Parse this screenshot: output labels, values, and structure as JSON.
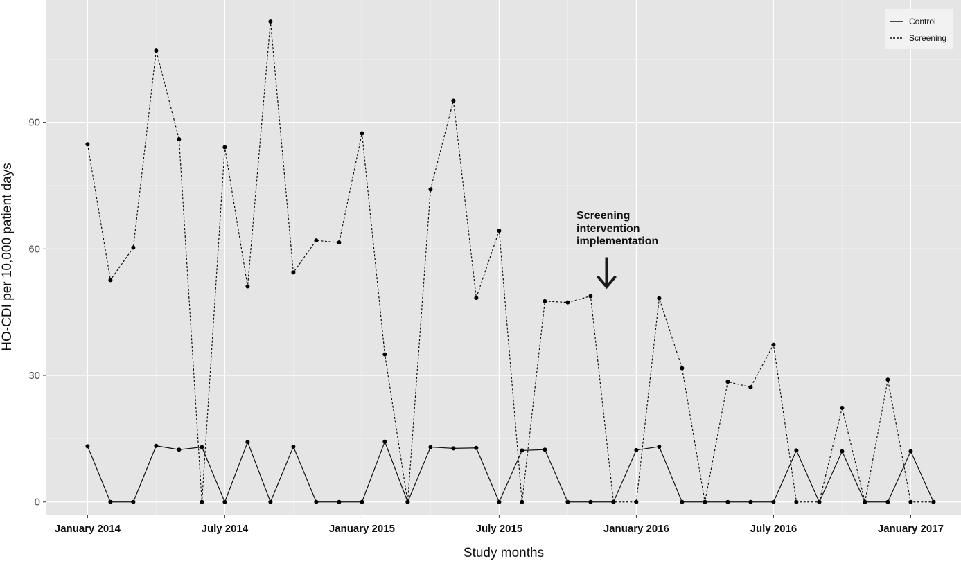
{
  "chart_data": {
    "type": "line",
    "xlabel": "Study months",
    "ylabel": "HO-CDI per 10,000 patient days",
    "x_ticks": [
      "January 2014",
      "July 2014",
      "January 2015",
      "July 2015",
      "January 2016",
      "July 2016",
      "January 2017"
    ],
    "x_tick_months": [
      0,
      6,
      12,
      18,
      24,
      30,
      36
    ],
    "x_months": [
      "2014-01",
      "2014-02",
      "2014-03",
      "2014-04",
      "2014-05",
      "2014-06",
      "2014-07",
      "2014-08",
      "2014-09",
      "2014-10",
      "2014-11",
      "2014-12",
      "2015-01",
      "2015-02",
      "2015-03",
      "2015-04",
      "2015-05",
      "2015-06",
      "2015-07",
      "2015-08",
      "2015-09",
      "2015-10",
      "2015-11",
      "2015-12",
      "2016-01",
      "2016-02",
      "2016-03",
      "2016-04",
      "2016-05",
      "2016-06",
      "2016-07",
      "2016-08",
      "2016-09",
      "2016-10",
      "2016-11",
      "2016-12",
      "2017-01",
      "2017-02"
    ],
    "y_ticks": [
      0,
      30,
      60,
      90
    ],
    "ylim": [
      -3,
      119
    ],
    "xlim": [
      -1.8,
      38.2
    ],
    "grid": true,
    "legend_position": "top-right",
    "series": [
      {
        "name": "Control",
        "line_style": "solid",
        "values": [
          13.2,
          0,
          0,
          13.3,
          12.4,
          13.0,
          0,
          14.2,
          0,
          13.1,
          0,
          0,
          0,
          14.3,
          0,
          13.0,
          12.7,
          12.8,
          0,
          12.2,
          12.4,
          0,
          0,
          0,
          12.3,
          13.1,
          0,
          0,
          0,
          0,
          0,
          12.2,
          0,
          12.0,
          0,
          0,
          12.0,
          0
        ]
      },
      {
        "name": "Screening",
        "line_style": "dashed",
        "values": [
          84.8,
          52.6,
          60.3,
          107.0,
          86.0,
          0,
          84.1,
          51.1,
          113.9,
          54.4,
          62.0,
          61.5,
          87.4,
          35.0,
          0,
          74.1,
          95.1,
          48.4,
          64.3,
          0,
          47.6,
          47.3,
          48.8,
          0,
          0,
          48.3,
          31.7,
          0,
          28.5,
          27.2,
          37.3,
          0,
          0,
          22.3,
          0,
          29.0,
          0,
          0
        ]
      }
    ],
    "annotations": [
      {
        "text": "Screening intervention implementation",
        "lines": [
          "Screening",
          "intervention",
          "implementation"
        ],
        "arrow_target_month": 23,
        "arrow_from_y": 58,
        "arrow_to_y": 51
      }
    ]
  }
}
